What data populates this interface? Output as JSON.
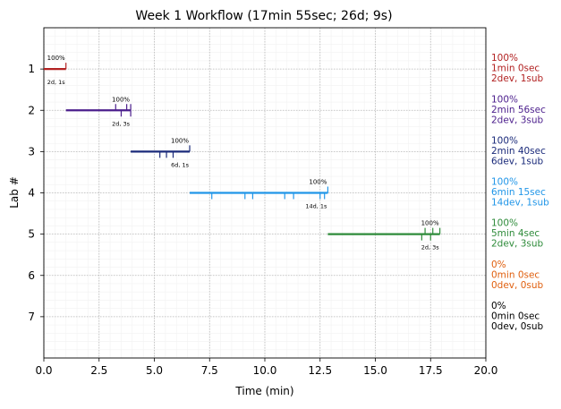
{
  "chart_data": {
    "type": "timeline",
    "title": "Week 1 Workflow (17min 55sec; 26d; 9s)",
    "xlabel": "Time (min)",
    "ylabel": "Lab #",
    "xlim": [
      0,
      20
    ],
    "ylim": [
      8,
      0
    ],
    "x_ticks": [
      "0.0",
      "2.5",
      "5.0",
      "7.5",
      "10.0",
      "12.5",
      "15.0",
      "17.5",
      "20.0"
    ],
    "y_ticks": [
      "1",
      "2",
      "3",
      "4",
      "5",
      "6",
      "7"
    ],
    "grid": true,
    "labs": [
      {
        "lab": 1,
        "start": 0.0,
        "end": 1.0,
        "color": "#b22222",
        "pct": "100%",
        "counts": "2d, 1s",
        "dev_ticks": [],
        "sub_ticks": [
          1.0
        ],
        "side": [
          "100%",
          "1min 0sec",
          "2dev, 1sub"
        ]
      },
      {
        "lab": 2,
        "start": 1.0,
        "end": 3.93,
        "color": "#4b1e8c",
        "pct": "100%",
        "counts": "2d, 3s",
        "dev_ticks": [
          3.5,
          3.93
        ],
        "sub_ticks": [
          3.25,
          3.75,
          3.93
        ],
        "side": [
          "100%",
          "2min 56sec",
          "2dev, 3sub"
        ]
      },
      {
        "lab": 3,
        "start": 3.93,
        "end": 6.6,
        "color": "#1a2a7a",
        "pct": "100%",
        "counts": "6d, 1s",
        "dev_ticks": [
          5.25,
          5.55,
          5.85
        ],
        "sub_ticks": [
          6.6
        ],
        "side": [
          "100%",
          "2min 40sec",
          "6dev, 1sub"
        ]
      },
      {
        "lab": 4,
        "start": 6.6,
        "end": 12.85,
        "color": "#2196e8",
        "pct": "100%",
        "counts": "14d, 1s",
        "dev_ticks": [
          7.6,
          9.1,
          9.45,
          10.9,
          11.3,
          12.5,
          12.7
        ],
        "sub_ticks": [
          12.85
        ],
        "side": [
          "100%",
          "6min 15sec",
          "14dev, 1sub"
        ]
      },
      {
        "lab": 5,
        "start": 12.85,
        "end": 17.92,
        "color": "#2e8b3a",
        "pct": "100%",
        "counts": "2d, 3s",
        "dev_ticks": [
          17.1,
          17.5
        ],
        "sub_ticks": [
          17.25,
          17.6,
          17.92
        ],
        "side": [
          "100%",
          "5min 4sec",
          "2dev, 3sub"
        ]
      },
      {
        "lab": 6,
        "start": null,
        "end": null,
        "color": "#e06010",
        "pct": "",
        "counts": "",
        "dev_ticks": [],
        "sub_ticks": [],
        "side": [
          "0%",
          "0min 0sec",
          "0dev, 0sub"
        ]
      },
      {
        "lab": 7,
        "start": null,
        "end": null,
        "color": "#000000",
        "pct": "",
        "counts": "",
        "dev_ticks": [],
        "sub_ticks": [],
        "side": [
          "0%",
          "0min 0sec",
          "0dev, 0sub"
        ]
      }
    ]
  }
}
